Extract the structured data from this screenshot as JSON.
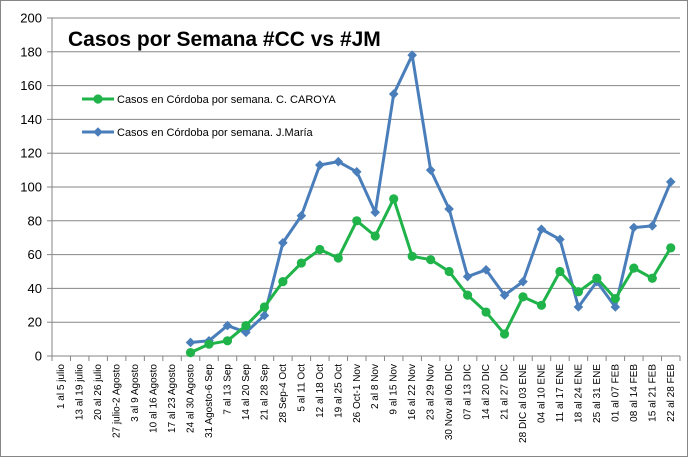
{
  "chart_data": {
    "type": "line",
    "title": "Casos por Semana #CC vs #JM",
    "xlabel": "",
    "ylabel": "",
    "ylim": [
      0,
      200
    ],
    "yticks": [
      0,
      20,
      40,
      60,
      80,
      100,
      120,
      140,
      160,
      180,
      200
    ],
    "grid": true,
    "legend_position": "top-left",
    "categories": [
      "1 al 5 julio",
      "13 al 19 julio",
      "20 al 26 julio",
      "27 julio-2 Agosto",
      "3 al 9 Agosto",
      "10 al 16 Agosto",
      "17 al 23 Agosto",
      "24 al 30 Agosto",
      "31 Agosto-6 Sep",
      "7 al 13 Sep",
      "14 al 20 Sep",
      "21 al 28 Sep",
      "28 Sep-4 Oct",
      "5 al 11 Oct",
      "12 al 18 Oct",
      "19 al 25 Oct",
      "26 Oct-1 Nov",
      "2 al 8 Nov",
      "9 al 15 Nov",
      "16 al 22 Nov",
      "23 al 29 Nov",
      "30 Nov al 06 DIC",
      "07 al 13 DIC",
      "14 al 20 DIC",
      "21 al 27 DIC",
      "28 DIC al 03 ENE",
      "04 al 10 ENE",
      "11 al 17 ENE",
      "18 al 24 ENE",
      "25 al 31 ENE",
      "01 al 07 FEB",
      "08 al 14 FEB",
      "15 al 21 FEB",
      "22 al 28 FEB"
    ],
    "series": [
      {
        "name": "Casos en Córdoba por semana. C. CAROYA",
        "color": "#1fb34a",
        "marker": "circle",
        "values": [
          null,
          null,
          null,
          null,
          null,
          null,
          null,
          2,
          7,
          9,
          18,
          29,
          44,
          55,
          63,
          58,
          80,
          71,
          93,
          59,
          57,
          50,
          36,
          26,
          13,
          35,
          30,
          50,
          38,
          46,
          34,
          52,
          46,
          64
        ]
      },
      {
        "name": "Casos en Córdoba por semana. J.María",
        "color": "#4a7ebb",
        "marker": "diamond",
        "values": [
          null,
          null,
          null,
          null,
          null,
          null,
          null,
          8,
          9,
          18,
          14,
          24,
          67,
          83,
          113,
          115,
          109,
          85,
          155,
          178,
          110,
          87,
          47,
          51,
          36,
          44,
          75,
          69,
          29,
          44,
          29,
          76,
          77,
          103
        ]
      }
    ]
  }
}
